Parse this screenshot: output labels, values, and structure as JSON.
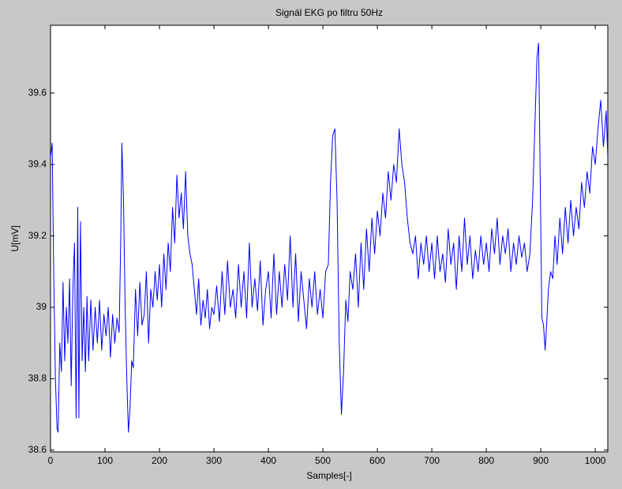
{
  "chart_data": {
    "type": "line",
    "title": "Signál EKG po filtru 50Hz",
    "x_label": "Samples[-]",
    "y_label": "U[mV]",
    "xlim": [
      0,
      1023
    ],
    "ylim": [
      38.595,
      39.79
    ],
    "xticks": [
      0,
      100,
      200,
      300,
      400,
      500,
      600,
      700,
      800,
      900,
      1000
    ],
    "yticks": [
      38.6,
      38.8,
      39,
      39.2,
      39.4,
      39.6
    ],
    "grid": false,
    "x": [
      0,
      3,
      6,
      9,
      12,
      14,
      17,
      20,
      23,
      26,
      29,
      32,
      35,
      38,
      41,
      44,
      47,
      50,
      52,
      55,
      58,
      61,
      64,
      67,
      70,
      74,
      78,
      82,
      86,
      90,
      94,
      98,
      102,
      106,
      110,
      114,
      118,
      122,
      126,
      129,
      131,
      134,
      137,
      140,
      143,
      146,
      149,
      152,
      156,
      160,
      164,
      168,
      172,
      176,
      180,
      184,
      188,
      192,
      196,
      200,
      204,
      208,
      212,
      216,
      220,
      224,
      228,
      232,
      236,
      240,
      244,
      248,
      252,
      256,
      260,
      264,
      268,
      272,
      276,
      280,
      284,
      288,
      292,
      296,
      300,
      305,
      310,
      315,
      320,
      325,
      330,
      335,
      340,
      345,
      350,
      355,
      360,
      365,
      370,
      375,
      380,
      385,
      390,
      395,
      400,
      405,
      410,
      415,
      420,
      425,
      430,
      435,
      440,
      445,
      450,
      455,
      460,
      465,
      470,
      475,
      480,
      485,
      490,
      495,
      500,
      505,
      510,
      514,
      518,
      522,
      526,
      530,
      534,
      538,
      542,
      546,
      550,
      555,
      560,
      565,
      570,
      575,
      580,
      585,
      590,
      595,
      600,
      605,
      610,
      615,
      620,
      625,
      630,
      635,
      640,
      645,
      650,
      655,
      660,
      665,
      670,
      675,
      680,
      685,
      690,
      695,
      700,
      705,
      710,
      715,
      720,
      725,
      730,
      735,
      740,
      745,
      750,
      755,
      760,
      765,
      770,
      775,
      780,
      785,
      790,
      795,
      800,
      805,
      810,
      815,
      820,
      825,
      830,
      835,
      840,
      845,
      850,
      855,
      860,
      865,
      870,
      875,
      880,
      885,
      890,
      893,
      896,
      899,
      902,
      905,
      908,
      911,
      914,
      918,
      922,
      926,
      930,
      935,
      940,
      945,
      950,
      955,
      960,
      965,
      970,
      975,
      980,
      985,
      990,
      995,
      1000,
      1005,
      1010,
      1015,
      1020,
      1023
    ],
    "series": [
      {
        "name": "EKG",
        "color": "#0000ff",
        "values": [
          39.42,
          39.46,
          39.08,
          38.8,
          38.66,
          38.65,
          38.9,
          38.82,
          39.07,
          38.85,
          39.0,
          38.9,
          39.08,
          38.78,
          39.05,
          39.18,
          38.69,
          39.28,
          38.69,
          39.24,
          38.85,
          39.0,
          38.82,
          39.03,
          38.85,
          39.02,
          38.88,
          39.0,
          38.9,
          39.02,
          38.88,
          38.98,
          38.92,
          39.0,
          38.86,
          38.98,
          38.9,
          38.97,
          38.93,
          39.2,
          39.46,
          39.3,
          39.0,
          38.8,
          38.65,
          38.72,
          38.85,
          38.83,
          39.05,
          38.92,
          39.07,
          38.95,
          38.98,
          39.1,
          38.9,
          39.05,
          39.0,
          39.1,
          39.02,
          39.12,
          39.0,
          39.15,
          39.05,
          39.18,
          39.1,
          39.28,
          39.18,
          39.37,
          39.25,
          39.32,
          39.22,
          39.38,
          39.2,
          39.15,
          39.12,
          39.05,
          38.98,
          39.08,
          38.95,
          39.02,
          38.97,
          39.05,
          38.94,
          39.0,
          38.98,
          39.06,
          38.96,
          39.1,
          38.98,
          39.13,
          39.0,
          39.05,
          38.97,
          39.12,
          39.0,
          39.1,
          38.97,
          39.18,
          39.0,
          39.08,
          38.99,
          39.13,
          38.95,
          39.05,
          39.1,
          38.97,
          39.15,
          38.98,
          39.1,
          39.0,
          39.12,
          39.02,
          39.2,
          39.0,
          39.15,
          38.96,
          39.1,
          39.02,
          38.94,
          39.08,
          39.0,
          39.1,
          38.98,
          39.05,
          38.97,
          39.1,
          39.12,
          39.35,
          39.48,
          39.5,
          39.3,
          38.9,
          38.7,
          38.82,
          39.02,
          38.96,
          39.1,
          39.05,
          39.15,
          39.0,
          39.18,
          39.05,
          39.22,
          39.1,
          39.25,
          39.15,
          39.27,
          39.2,
          39.32,
          39.25,
          39.38,
          39.3,
          39.4,
          39.35,
          39.5,
          39.4,
          39.35,
          39.25,
          39.18,
          39.15,
          39.2,
          39.08,
          39.18,
          39.12,
          39.2,
          39.1,
          39.18,
          39.08,
          39.2,
          39.1,
          39.15,
          39.07,
          39.22,
          39.12,
          39.18,
          39.05,
          39.2,
          39.1,
          39.25,
          39.12,
          39.2,
          39.08,
          39.16,
          39.1,
          39.2,
          39.12,
          39.18,
          39.1,
          39.22,
          39.15,
          39.25,
          39.12,
          39.2,
          39.15,
          39.22,
          39.1,
          39.18,
          39.12,
          39.2,
          39.14,
          39.18,
          39.1,
          39.15,
          39.3,
          39.55,
          39.7,
          39.74,
          39.35,
          38.97,
          38.95,
          38.88,
          38.96,
          39.05,
          39.1,
          39.08,
          39.2,
          39.12,
          39.25,
          39.15,
          39.28,
          39.18,
          39.3,
          39.2,
          39.28,
          39.22,
          39.35,
          39.28,
          39.38,
          39.32,
          39.45,
          39.4,
          39.5,
          39.58,
          39.45,
          39.55,
          39.42
        ]
      }
    ]
  }
}
